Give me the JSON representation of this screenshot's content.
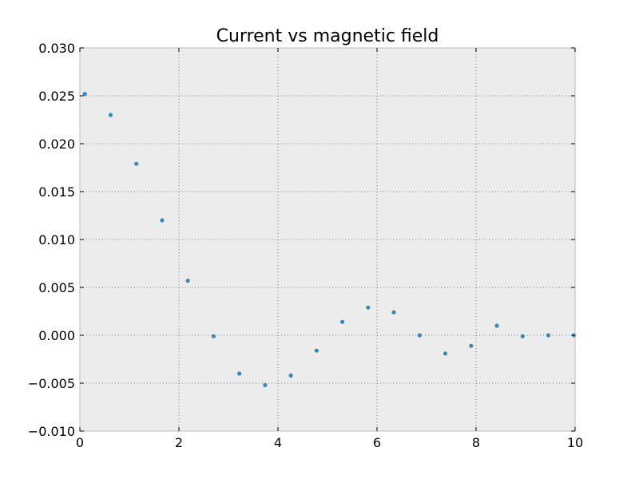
{
  "chart_data": {
    "type": "scatter",
    "title": "Current vs magnetic field",
    "xlabel": "",
    "ylabel": "",
    "xlim": [
      0,
      10
    ],
    "ylim": [
      -0.01,
      0.03
    ],
    "x_ticks": [
      "0",
      "2",
      "4",
      "6",
      "8",
      "10"
    ],
    "x_tick_values": [
      0,
      2,
      4,
      6,
      8,
      10
    ],
    "y_ticks": [
      "−0.010",
      "−0.005",
      "0.000",
      "0.005",
      "0.010",
      "0.015",
      "0.020",
      "0.025",
      "0.030"
    ],
    "y_tick_values": [
      -0.01,
      -0.005,
      0,
      0.005,
      0.01,
      0.015,
      0.02,
      0.025,
      0.03
    ],
    "grid": true,
    "background_color": "#ececec",
    "point_color": "#348abd",
    "series": [
      {
        "x": [
          0.1,
          0.62,
          1.14,
          1.66,
          2.18,
          2.7,
          3.22,
          3.74,
          4.26,
          4.78,
          5.3,
          5.82,
          6.34,
          6.86,
          7.38,
          7.9,
          8.42,
          8.94,
          9.46,
          9.98
        ],
        "y": [
          0.0252,
          0.023,
          0.0179,
          0.012,
          0.0057,
          -0.0001,
          -0.004,
          -0.0052,
          -0.0042,
          -0.0016,
          0.0014,
          0.0029,
          0.0024,
          0.0,
          -0.0019,
          -0.0011,
          0.001,
          -0.0001,
          0.0,
          0.0
        ]
      }
    ]
  }
}
